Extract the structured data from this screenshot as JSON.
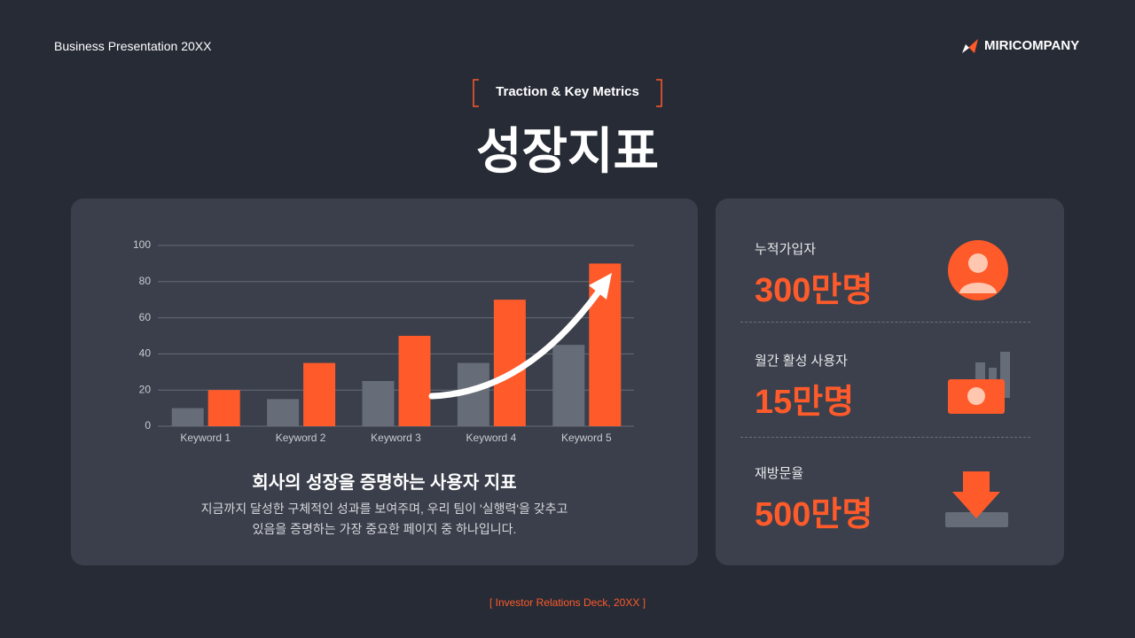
{
  "header": {
    "subtitle": "Business Presentation 20XX",
    "brand": "MIRICOMPANY",
    "tag": "Traction & Key Metrics",
    "title": "성장지표"
  },
  "chart_data": {
    "type": "bar",
    "categories": [
      "Keyword 1",
      "Keyword 2",
      "Keyword 3",
      "Keyword 4",
      "Keyword 5"
    ],
    "series": [
      {
        "color": "#676c79",
        "values": [
          10,
          15,
          25,
          35,
          45
        ]
      },
      {
        "color": "#ff5a2a",
        "values": [
          20,
          35,
          50,
          70,
          90
        ]
      }
    ],
    "ylim": [
      0,
      100
    ],
    "yticks": [
      0,
      20,
      40,
      60,
      80,
      100
    ],
    "grid": true
  },
  "caption": {
    "title": "회사의 성장을 증명하는 사용자 지표",
    "lines": [
      "지금까지 달성한 구체적인 성과를 보여주며, 우리 팀이 '실행력'을 갖추고",
      "있음을 증명하는 가장 중요한 페이지 중 하나입니다."
    ]
  },
  "metrics": [
    {
      "label": "누적가입자",
      "value": "300만명"
    },
    {
      "label": "월간 활성 사용자",
      "value": "15만명"
    },
    {
      "label": "재방문율",
      "value": "500만명"
    }
  ],
  "footer": "[ Investor Relations Deck, 20XX ]"
}
